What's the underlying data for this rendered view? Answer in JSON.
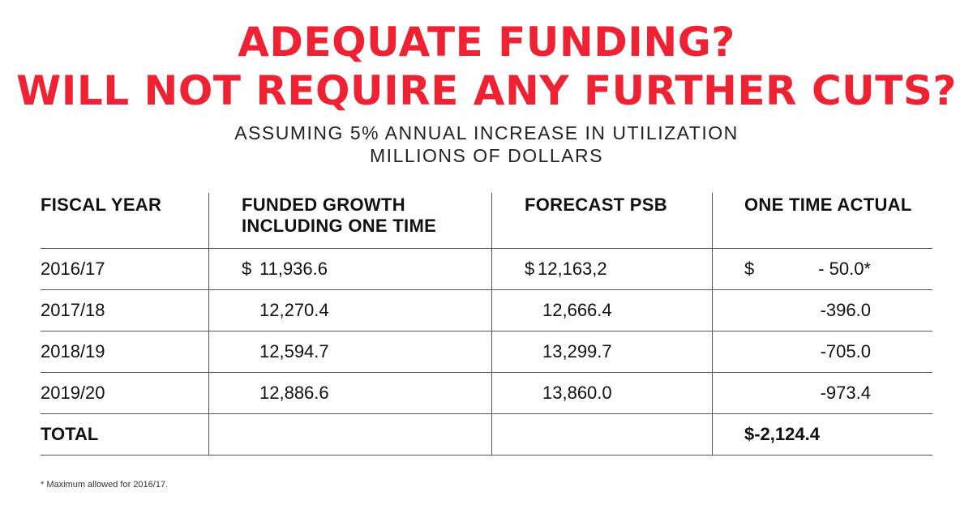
{
  "title": {
    "line1": "ADEQUATE FUNDING?",
    "line2": "WILL NOT REQUIRE ANY FURTHER CUTS?"
  },
  "subtitle": {
    "line1": "ASSUMING 5% ANNUAL INCREASE IN UTILIZATION",
    "line2": "MILLIONS OF DOLLARS"
  },
  "colors": {
    "title": "#ee2233",
    "text": "#111111",
    "rule": "#555555"
  },
  "table": {
    "headers": [
      "FISCAL YEAR",
      "FUNDED GROWTH INCLUDING ONE TIME",
      "FORECAST PSB",
      "ONE TIME ACTUAL"
    ],
    "rows": [
      {
        "year": "2016/17",
        "funded_currency": "$",
        "funded": "11,936.6",
        "forecast_currency": "$",
        "forecast": "12,163,2",
        "actual_currency": "$",
        "actual": "- 50.0*"
      },
      {
        "year": "2017/18",
        "funded": "12,270.4",
        "forecast": "12,666.4",
        "actual": "-396.0"
      },
      {
        "year": "2018/19",
        "funded": "12,594.7",
        "forecast": "13,299.7",
        "actual": "-705.0"
      },
      {
        "year": "2019/20",
        "funded": "12,886.6",
        "forecast": "13,860.0",
        "actual": "-973.4"
      }
    ],
    "total": {
      "label": "TOTAL",
      "actual": "$-2,124.4"
    }
  },
  "footnote": "* Maximum allowed for 2016/17."
}
